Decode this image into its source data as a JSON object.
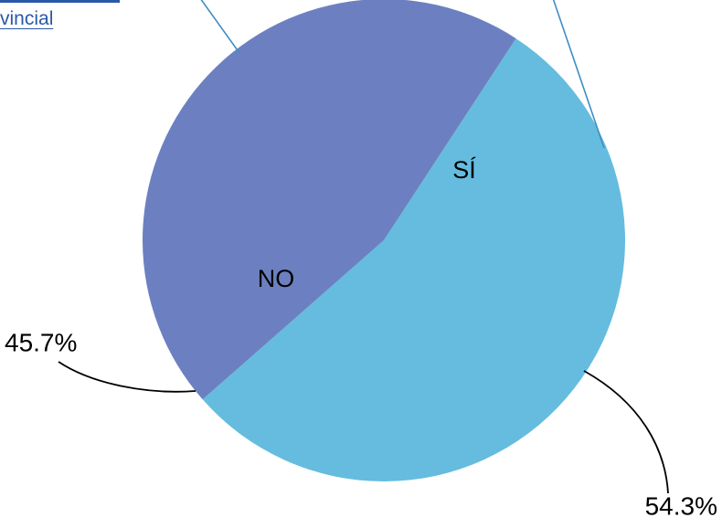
{
  "header": {
    "link_text": "vincial"
  },
  "colors": {
    "yes_slice": "#65bcdf",
    "no_slice": "#6c80c1",
    "leader_blue": "#3f8ec4",
    "leader_black": "#000000",
    "link": "#2a59a8"
  },
  "chart_data": {
    "type": "pie",
    "categories": [
      "SÍ",
      "NO"
    ],
    "values": [
      54.3,
      45.7
    ],
    "value_labels": [
      "54.3%",
      "45.7%"
    ],
    "title": "",
    "legend": "none"
  }
}
